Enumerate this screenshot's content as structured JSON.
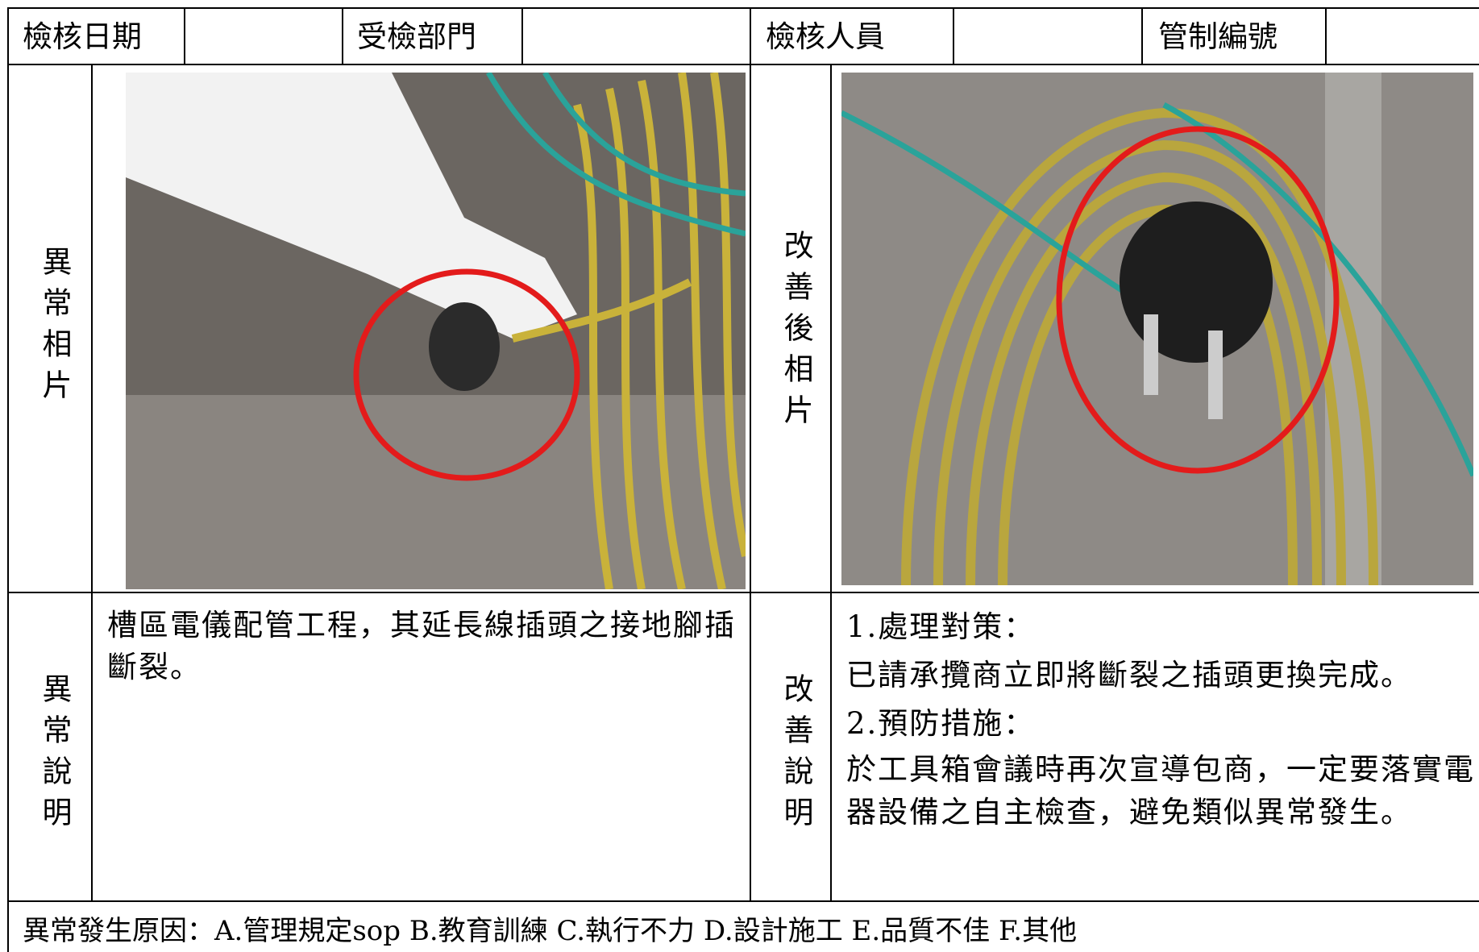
{
  "header": {
    "cells": [
      "檢核日期",
      "受檢部門",
      "檢核人員",
      "管制編號"
    ]
  },
  "photos": {
    "before_label": "異常相片",
    "after_label": "改善後相片"
  },
  "description": {
    "label": "異常說明",
    "text": "槽區電儀配管工程，其延長線插頭之接地腳插斷裂。"
  },
  "improvement": {
    "label": "改善說明",
    "lines": [
      "1.處理對策：",
      "已請承攬商立即將斷裂之插頭更換完成。",
      "2.預防措施：",
      "於工具箱會議時再次宣導包商，一定要落實電器設備之自主檢查，避免類似異常發生。"
    ]
  },
  "footer": {
    "causes": "異常發生原因：A.管理規定sop B.教育訓練 C.執行不力 D.設計施工 E.品質不佳 F.其他"
  }
}
